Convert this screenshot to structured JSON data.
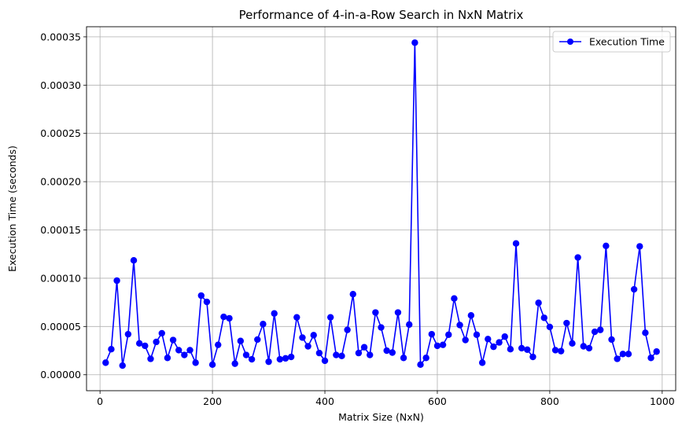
{
  "chart_data": {
    "type": "line",
    "title": "Performance of 4-in-a-Row Search in NxN Matrix",
    "xlabel": "Matrix Size (NxN)",
    "ylabel": "Execution Time (seconds)",
    "xlim": [
      -24,
      1024
    ],
    "ylim": [
      -1.65e-05,
      0.0003605
    ],
    "x_ticks": [
      0,
      200,
      400,
      600,
      800,
      1000
    ],
    "x_tick_labels": [
      "0",
      "200",
      "400",
      "600",
      "800",
      "1000"
    ],
    "y_ticks": [
      0,
      5e-05,
      0.0001,
      0.00015,
      0.0002,
      0.00025,
      0.0003,
      0.00035
    ],
    "y_tick_labels": [
      "0.00000",
      "0.00005",
      "0.00010",
      "0.00015",
      "0.00020",
      "0.00025",
      "0.00030",
      "0.00035"
    ],
    "grid": true,
    "legend_position": "top-right",
    "series": [
      {
        "name": "Execution Time",
        "color": "#0000ff",
        "marker": "circle",
        "x": [
          10,
          20,
          30,
          40,
          50,
          60,
          70,
          80,
          90,
          100,
          110,
          120,
          130,
          140,
          150,
          160,
          170,
          180,
          190,
          200,
          210,
          220,
          230,
          240,
          250,
          260,
          270,
          280,
          290,
          300,
          310,
          320,
          330,
          340,
          350,
          360,
          370,
          380,
          390,
          400,
          410,
          420,
          430,
          440,
          450,
          460,
          470,
          480,
          490,
          500,
          510,
          520,
          530,
          540,
          550,
          560,
          570,
          580,
          590,
          600,
          610,
          620,
          630,
          640,
          650,
          660,
          670,
          680,
          690,
          700,
          710,
          720,
          730,
          740,
          750,
          760,
          770,
          780,
          790,
          800,
          810,
          820,
          830,
          840,
          850,
          860,
          870,
          880,
          890,
          900,
          910,
          920,
          930,
          940,
          950,
          960,
          970,
          980,
          990
        ],
        "y": [
          1.25e-05,
          2.65e-05,
          9.75e-05,
          9.5e-06,
          4.2e-05,
          0.0001185,
          3.25e-05,
          3e-05,
          1.65e-05,
          3.4e-05,
          4.3e-05,
          1.75e-05,
          3.6e-05,
          2.55e-05,
          2.05e-05,
          2.55e-05,
          1.25e-05,
          8.2e-05,
          7.55e-05,
          1.05e-05,
          3.1e-05,
          6e-05,
          5.85e-05,
          1.15e-05,
          3.5e-05,
          2.05e-05,
          1.6e-05,
          3.65e-05,
          5.25e-05,
          1.35e-05,
          6.35e-05,
          1.6e-05,
          1.7e-05,
          1.85e-05,
          5.95e-05,
          3.85e-05,
          2.95e-05,
          4.1e-05,
          2.25e-05,
          1.45e-05,
          5.95e-05,
          2.05e-05,
          1.95e-05,
          4.65e-05,
          8.35e-05,
          2.25e-05,
          2.85e-05,
          2.05e-05,
          6.45e-05,
          4.9e-05,
          2.5e-05,
          2.3e-05,
          6.45e-05,
          1.75e-05,
          5.2e-05,
          0.000344,
          1.05e-05,
          1.75e-05,
          4.2e-05,
          3e-05,
          3.1e-05,
          4.15e-05,
          7.9e-05,
          5.15e-05,
          3.6e-05,
          6.15e-05,
          4.15e-05,
          1.25e-05,
          3.7e-05,
          2.9e-05,
          3.35e-05,
          3.95e-05,
          2.65e-05,
          0.000136,
          2.75e-05,
          2.6e-05,
          1.85e-05,
          7.45e-05,
          5.9e-05,
          4.95e-05,
          2.55e-05,
          2.45e-05,
          5.35e-05,
          3.25e-05,
          0.0001215,
          2.95e-05,
          2.75e-05,
          4.45e-05,
          4.65e-05,
          0.0001335,
          3.65e-05,
          1.65e-05,
          2.15e-05,
          2.15e-05,
          8.85e-05,
          0.000133,
          4.35e-05,
          1.75e-05,
          2.4e-05
        ]
      }
    ]
  }
}
